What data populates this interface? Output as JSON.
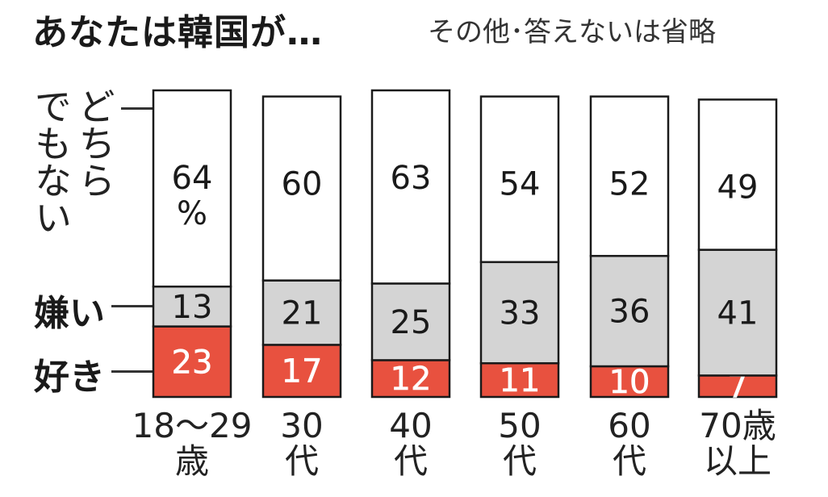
{
  "title": "あなたは韓国が…",
  "subtitle": "その他･答えないは省略",
  "legend": {
    "neither_line1": "どちら",
    "neither_line2": "でもない",
    "dislike": "嫌い",
    "like": "好き"
  },
  "percent_sign": "%",
  "colors": {
    "like": "#e8513f",
    "dislike": "#d4d4d4",
    "neither": "#ffffff",
    "outline": "#1a1a1a"
  },
  "chart_data": {
    "type": "bar",
    "stacked": true,
    "categories": [
      "18～29\n歳",
      "30\n代",
      "40\n代",
      "50\n代",
      "60\n代",
      "70歳\n以上"
    ],
    "series": [
      {
        "name": "好き",
        "values": [
          23,
          17,
          12,
          11,
          10,
          7
        ]
      },
      {
        "name": "嫌い",
        "values": [
          13,
          21,
          25,
          33,
          36,
          41
        ]
      },
      {
        "name": "どちらでもない",
        "values": [
          64,
          60,
          63,
          54,
          52,
          49
        ]
      }
    ],
    "ylim": [
      0,
      100
    ]
  }
}
